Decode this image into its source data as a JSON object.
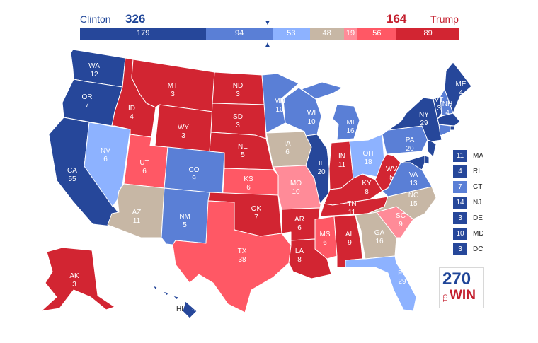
{
  "header": {
    "dem_name": "Clinton",
    "dem_total": "326",
    "rep_name": "Trump",
    "rep_total": "164",
    "dem_color": "#1f4598",
    "rep_color": "#c41e2d"
  },
  "bar_segments": [
    {
      "value": "179",
      "color": "#26479a"
    },
    {
      "value": "94",
      "color": "#5a7fd6"
    },
    {
      "value": "53",
      "color": "#8db2ff"
    },
    {
      "value": "48",
      "color": "#c7b7a5"
    },
    {
      "value": "19",
      "color": "#ff8b98"
    },
    {
      "value": "56",
      "color": "#ff5865"
    },
    {
      "value": "89",
      "color": "#d22532"
    }
  ],
  "colors": {
    "safe_d": "#26479a",
    "likely_d": "#5a7fd6",
    "lean_d": "#8db2ff",
    "tossup": "#c7b7a5",
    "tilt_r": "#ff8b98",
    "lean_r": "#ff5865",
    "safe_r": "#d22532"
  },
  "states": [
    {
      "abbr": "WA",
      "ev": "12",
      "cat": "safe_d"
    },
    {
      "abbr": "OR",
      "ev": "7",
      "cat": "safe_d"
    },
    {
      "abbr": "CA",
      "ev": "55",
      "cat": "safe_d"
    },
    {
      "abbr": "NV",
      "ev": "6",
      "cat": "lean_d"
    },
    {
      "abbr": "ID",
      "ev": "4",
      "cat": "safe_r"
    },
    {
      "abbr": "MT",
      "ev": "3",
      "cat": "safe_r"
    },
    {
      "abbr": "WY",
      "ev": "3",
      "cat": "safe_r"
    },
    {
      "abbr": "UT",
      "ev": "6",
      "cat": "lean_r"
    },
    {
      "abbr": "AZ",
      "ev": "11",
      "cat": "tossup"
    },
    {
      "abbr": "CO",
      "ev": "9",
      "cat": "likely_d"
    },
    {
      "abbr": "NM",
      "ev": "5",
      "cat": "likely_d"
    },
    {
      "abbr": "ND",
      "ev": "3",
      "cat": "safe_r"
    },
    {
      "abbr": "SD",
      "ev": "3",
      "cat": "safe_r"
    },
    {
      "abbr": "NE",
      "ev": "5",
      "cat": "safe_r"
    },
    {
      "abbr": "KS",
      "ev": "6",
      "cat": "lean_r"
    },
    {
      "abbr": "OK",
      "ev": "7",
      "cat": "safe_r"
    },
    {
      "abbr": "TX",
      "ev": "38",
      "cat": "lean_r"
    },
    {
      "abbr": "MN",
      "ev": "10",
      "cat": "likely_d"
    },
    {
      "abbr": "IA",
      "ev": "6",
      "cat": "tossup"
    },
    {
      "abbr": "MO",
      "ev": "10",
      "cat": "tilt_r"
    },
    {
      "abbr": "AR",
      "ev": "6",
      "cat": "safe_r"
    },
    {
      "abbr": "LA",
      "ev": "8",
      "cat": "safe_r"
    },
    {
      "abbr": "WI",
      "ev": "10",
      "cat": "likely_d"
    },
    {
      "abbr": "IL",
      "ev": "20",
      "cat": "safe_d"
    },
    {
      "abbr": "MS",
      "ev": "6",
      "cat": "lean_r"
    },
    {
      "abbr": "MI",
      "ev": "16",
      "cat": "likely_d"
    },
    {
      "abbr": "IN",
      "ev": "11",
      "cat": "safe_r"
    },
    {
      "abbr": "KY",
      "ev": "8",
      "cat": "safe_r"
    },
    {
      "abbr": "TN",
      "ev": "11",
      "cat": "safe_r"
    },
    {
      "abbr": "AL",
      "ev": "9",
      "cat": "safe_r"
    },
    {
      "abbr": "OH",
      "ev": "18",
      "cat": "lean_d"
    },
    {
      "abbr": "WV",
      "ev": "5",
      "cat": "safe_r"
    },
    {
      "abbr": "GA",
      "ev": "16",
      "cat": "tossup"
    },
    {
      "abbr": "FL",
      "ev": "29",
      "cat": "lean_d"
    },
    {
      "abbr": "SC",
      "ev": "9",
      "cat": "tilt_r"
    },
    {
      "abbr": "NC",
      "ev": "15",
      "cat": "tossup"
    },
    {
      "abbr": "VA",
      "ev": "13",
      "cat": "likely_d"
    },
    {
      "abbr": "PA",
      "ev": "20",
      "cat": "likely_d"
    },
    {
      "abbr": "NY",
      "ev": "29",
      "cat": "safe_d"
    },
    {
      "abbr": "VT",
      "ev": "3",
      "cat": "safe_d"
    },
    {
      "abbr": "NH",
      "ev": "4",
      "cat": "likely_d"
    },
    {
      "abbr": "ME",
      "ev": "4",
      "cat": "safe_d"
    },
    {
      "abbr": "AK",
      "ev": "3",
      "cat": "safe_r"
    },
    {
      "abbr": "HI",
      "ev": "4",
      "cat": "safe_d"
    }
  ],
  "small_states": [
    {
      "abbr": "MA",
      "ev": "11",
      "cat": "safe_d"
    },
    {
      "abbr": "RI",
      "ev": "4",
      "cat": "safe_d"
    },
    {
      "abbr": "CT",
      "ev": "7",
      "cat": "likely_d"
    },
    {
      "abbr": "NJ",
      "ev": "14",
      "cat": "safe_d"
    },
    {
      "abbr": "DE",
      "ev": "3",
      "cat": "safe_d"
    },
    {
      "abbr": "MD",
      "ev": "10",
      "cat": "safe_d"
    },
    {
      "abbr": "DC",
      "ev": "3",
      "cat": "safe_d"
    }
  ],
  "logo": {
    "top": "270",
    "to": "TO",
    "win": "WIN"
  }
}
